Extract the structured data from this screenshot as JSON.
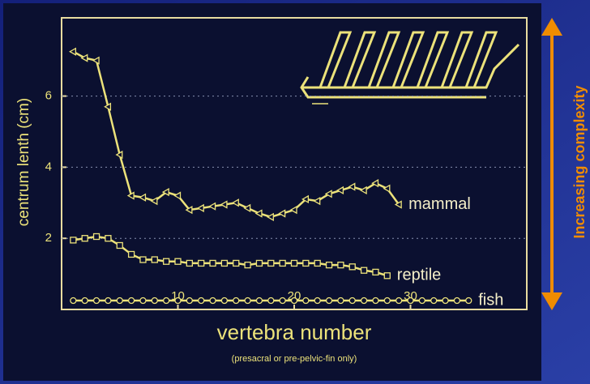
{
  "chart_data": {
    "type": "line",
    "ylabel": "centrum lenth (cm)",
    "xlabel": "vertebra number",
    "xlabel_note": "(presacral or pre-pelvic-fin only)",
    "annotation": "Increasing complexity",
    "xlim": [
      0,
      40
    ],
    "ylim": [
      0,
      8.2
    ],
    "xticks": [
      10,
      20,
      30
    ],
    "yticks": [
      2,
      4,
      6
    ],
    "grid": true,
    "series": [
      {
        "name": "mammal",
        "color": "#ece27a",
        "marker": "triangle",
        "x": [
          1,
          2,
          3,
          4,
          5,
          6,
          7,
          8,
          9,
          10,
          11,
          12,
          13,
          14,
          15,
          16,
          17,
          18,
          19,
          20,
          21,
          22,
          23,
          24,
          25,
          26,
          27,
          28,
          29
        ],
        "values": [
          7.25,
          7.07,
          7.0,
          5.7,
          4.35,
          3.2,
          3.15,
          3.05,
          3.3,
          3.2,
          2.8,
          2.85,
          2.9,
          2.95,
          3.0,
          2.85,
          2.7,
          2.6,
          2.7,
          2.8,
          3.1,
          3.05,
          3.25,
          3.35,
          3.45,
          3.35,
          3.55,
          3.4,
          2.95
        ]
      },
      {
        "name": "reptile",
        "color": "#ece27a",
        "marker": "square",
        "x": [
          1,
          2,
          3,
          4,
          5,
          6,
          7,
          8,
          9,
          10,
          11,
          12,
          13,
          14,
          15,
          16,
          17,
          18,
          19,
          20,
          21,
          22,
          23,
          24,
          25,
          26,
          27,
          28
        ],
        "values": [
          1.95,
          2.0,
          2.05,
          2.0,
          1.8,
          1.55,
          1.4,
          1.4,
          1.35,
          1.35,
          1.3,
          1.3,
          1.3,
          1.3,
          1.3,
          1.25,
          1.3,
          1.3,
          1.3,
          1.3,
          1.3,
          1.3,
          1.25,
          1.25,
          1.2,
          1.1,
          1.05,
          0.95
        ]
      },
      {
        "name": "fish",
        "color": "#ece27a",
        "marker": "circle",
        "x": [
          1,
          2,
          3,
          4,
          5,
          6,
          7,
          8,
          9,
          10,
          11,
          12,
          13,
          14,
          15,
          16,
          17,
          18,
          19,
          20,
          21,
          22,
          23,
          24,
          25,
          26,
          27,
          28,
          29,
          30,
          31,
          32,
          33,
          34,
          35
        ],
        "values": [
          0.25,
          0.25,
          0.25,
          0.25,
          0.25,
          0.25,
          0.25,
          0.25,
          0.25,
          0.25,
          0.25,
          0.25,
          0.25,
          0.25,
          0.25,
          0.25,
          0.25,
          0.25,
          0.25,
          0.25,
          0.25,
          0.25,
          0.25,
          0.25,
          0.25,
          0.25,
          0.25,
          0.25,
          0.25,
          0.25,
          0.25,
          0.25,
          0.25,
          0.25,
          0.25
        ]
      }
    ]
  }
}
